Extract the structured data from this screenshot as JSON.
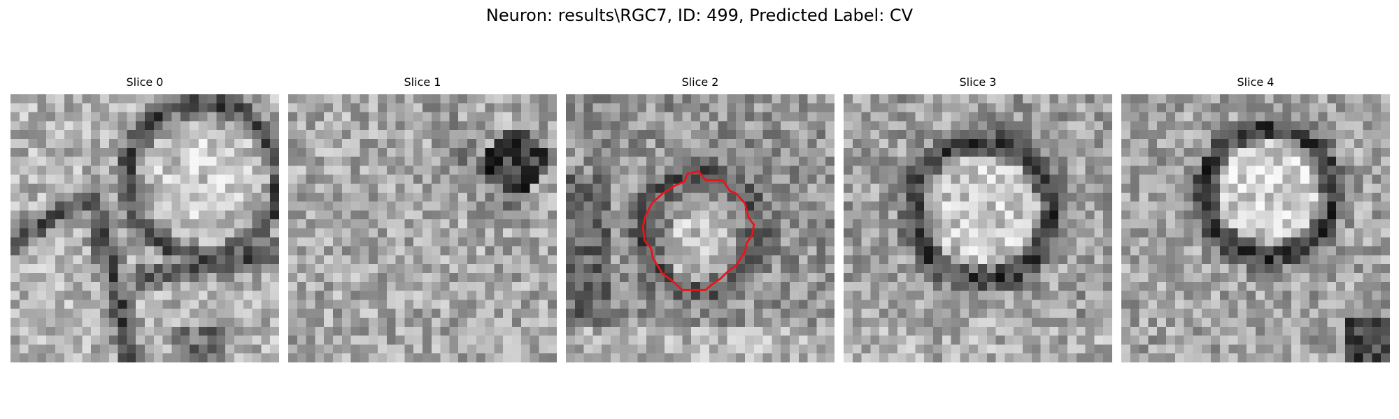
{
  "figure": {
    "title": "Neuron: results\\RGC7, ID: 499, Predicted Label: CV"
  },
  "panels": [
    {
      "title": "Slice 0",
      "pattern": "cell-boundaries",
      "seed": 11
    },
    {
      "title": "Slice 1",
      "pattern": "noisy-texture",
      "seed": 23
    },
    {
      "title": "Slice 2",
      "pattern": "small-vesicle",
      "seed": 37,
      "contour_color": "#e8141a"
    },
    {
      "title": "Slice 3",
      "pattern": "ring-vesicle",
      "seed": 41
    },
    {
      "title": "Slice 4",
      "pattern": "ring-vesicle-tight",
      "seed": 53
    }
  ],
  "colors": {
    "background": "#ffffff",
    "contour": "#e8141a",
    "colormap": "gray"
  }
}
